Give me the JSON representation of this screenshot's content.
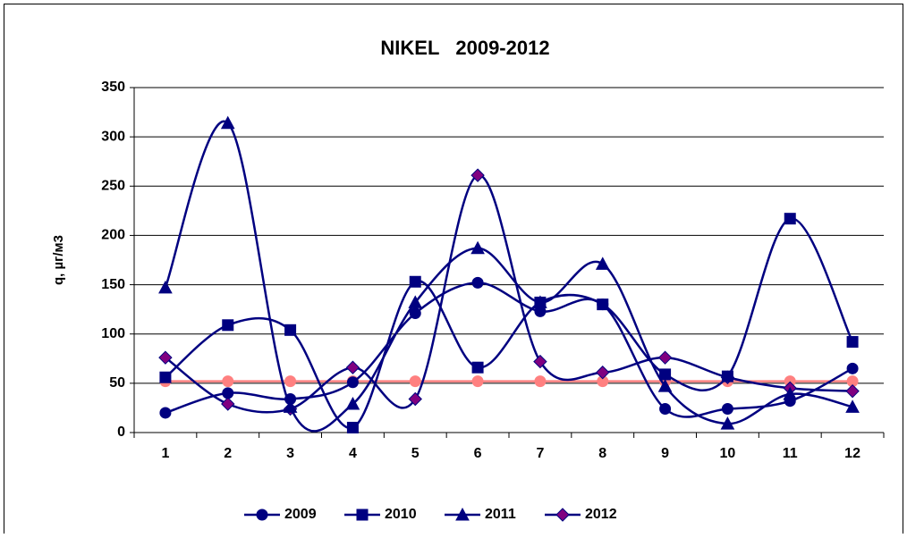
{
  "chart_data": {
    "type": "line",
    "title": "NIKEL   2009-2012",
    "y_label": "q, µг/м3",
    "categories": [
      "1",
      "2",
      "3",
      "4",
      "5",
      "6",
      "7",
      "8",
      "9",
      "10",
      "11",
      "12"
    ],
    "ylim": [
      0,
      350
    ],
    "yticks": [
      0,
      50,
      100,
      150,
      200,
      250,
      300,
      350
    ],
    "grid": true,
    "smooth": true,
    "legend": "bottom",
    "series": [
      {
        "name": "2009",
        "color": "#000080",
        "marker": "circle",
        "values": [
          20,
          40,
          34,
          51,
          121,
          152,
          123,
          130,
          24,
          24,
          32,
          65
        ]
      },
      {
        "name": "2010",
        "color": "#000080",
        "marker": "square",
        "values": [
          56,
          109,
          104,
          5,
          153,
          66,
          132,
          130,
          59,
          57,
          217,
          92
        ]
      },
      {
        "name": "2011",
        "color": "#000080",
        "marker": "triangle",
        "values": [
          147,
          314,
          26,
          29,
          132,
          187,
          132,
          171,
          47,
          9,
          39,
          26
        ]
      },
      {
        "name": "2012",
        "color": "#000080",
        "marker": "diamond",
        "fill": "#800080",
        "values": [
          76,
          29,
          24,
          66,
          34,
          261,
          72,
          61,
          76,
          56,
          45,
          42
        ]
      },
      {
        "color": "#ff8080",
        "marker": "circle",
        "values": [
          52,
          52,
          52,
          52,
          52,
          52,
          52,
          52,
          52,
          52,
          52,
          52
        ]
      }
    ]
  }
}
